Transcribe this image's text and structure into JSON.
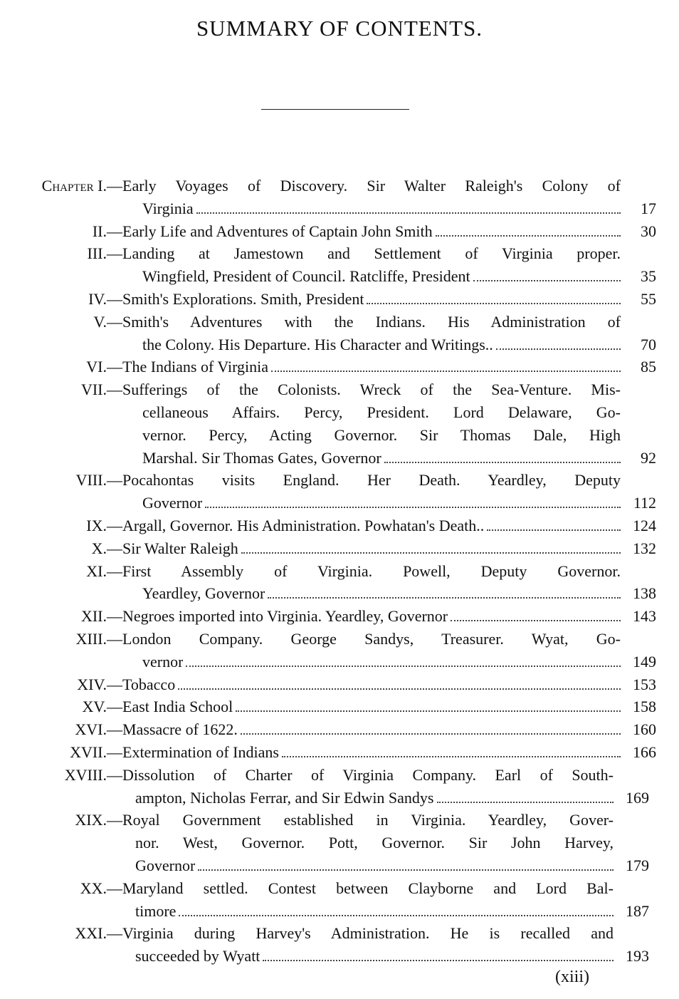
{
  "title": "SUMMARY OF CONTENTS.",
  "chapter_word": "Chapter",
  "entries": [
    {
      "numeral": "I.—",
      "lines": [
        "Early Voyages of Discovery.  Sir Walter Raleigh's Colony of",
        "Virginia"
      ],
      "page": "17"
    },
    {
      "numeral": "II.—",
      "lines": [
        "Early Life and Adventures of Captain John Smith"
      ],
      "page": "30"
    },
    {
      "numeral": "III.—",
      "lines": [
        "Landing at Jamestown and Settlement of Virginia proper.",
        "Wingfield, President of Council.  Ratcliffe, President"
      ],
      "page": "35"
    },
    {
      "numeral": "IV.—",
      "lines": [
        "Smith's Explorations.  Smith, President"
      ],
      "page": "55"
    },
    {
      "numeral": "V.—",
      "lines": [
        "Smith's Adventures with the Indians.  His Administration of",
        "the Colony.  His Departure.  His Character and Writings.."
      ],
      "page": "70"
    },
    {
      "numeral": "VI.—",
      "lines": [
        "The Indians of Virginia"
      ],
      "page": "85"
    },
    {
      "numeral": "VII.—",
      "lines": [
        "Sufferings of the Colonists.  Wreck of the Sea-Venture.  Mis-",
        "cellaneous Affairs.  Percy, President.  Lord Delaware, Go-",
        "vernor.  Percy, Acting Governor.  Sir Thomas Dale, High",
        "Marshal.  Sir Thomas Gates, Governor"
      ],
      "page": "92"
    },
    {
      "numeral": "VIII.—",
      "lines": [
        "Pocahontas visits England.  Her Death.  Yeardley, Deputy",
        "Governor"
      ],
      "page": "112"
    },
    {
      "numeral": "IX.—",
      "lines": [
        "Argall, Governor.  His Administration.  Powhatan's Death.."
      ],
      "page": "124"
    },
    {
      "numeral": "X.—",
      "lines": [
        "Sir Walter Raleigh"
      ],
      "page": "132"
    },
    {
      "numeral": "XI.—",
      "lines": [
        "First Assembly of Virginia.  Powell, Deputy Governor.",
        "Yeardley, Governor"
      ],
      "page": "138"
    },
    {
      "numeral": "XII.—",
      "lines": [
        "Negroes imported into Virginia.  Yeardley, Governor"
      ],
      "page": "143"
    },
    {
      "numeral": "XIII.—",
      "lines": [
        "London Company.  George Sandys, Treasurer.  Wyat, Go-",
        "vernor"
      ],
      "page": "149"
    },
    {
      "numeral": "XIV.—",
      "lines": [
        "Tobacco"
      ],
      "page": "153"
    },
    {
      "numeral": "XV.—",
      "lines": [
        "East India School"
      ],
      "page": "158"
    },
    {
      "numeral": "XVI.—",
      "lines": [
        "Massacre of 1622."
      ],
      "page": "160"
    },
    {
      "numeral": "XVII.—",
      "lines": [
        "Extermination of Indians"
      ],
      "page": "166"
    },
    {
      "numeral": "XVIII.—",
      "lines": [
        "Dissolution of Charter of Virginia Company.  Earl of South-",
        "ampton, Nicholas Ferrar, and Sir Edwin Sandys"
      ],
      "page": "169"
    },
    {
      "numeral": "XIX.—",
      "lines": [
        "Royal Government established in Virginia.  Yeardley, Gover-",
        "nor.  West, Governor.  Pott, Governor.  Sir John Harvey,",
        "Governor"
      ],
      "page": "179"
    },
    {
      "numeral": "XX.—",
      "lines": [
        "Maryland settled.  Contest between Clayborne and Lord Bal-",
        "timore"
      ],
      "page": "187"
    },
    {
      "numeral": "XXI.—",
      "lines": [
        "Virginia during Harvey's Administration.  He is recalled and",
        "succeeded by Wyatt"
      ],
      "page": "193"
    }
  ],
  "folio": "(xiii)"
}
